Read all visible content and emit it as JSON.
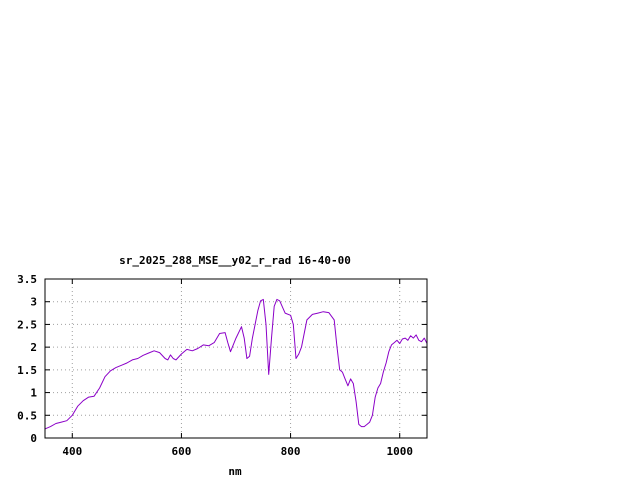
{
  "chart_data": {
    "type": "line",
    "title": "sr_2025_288_MSE__y02_r_rad 16-40-00",
    "xlabel": "nm",
    "ylabel": "",
    "xlim": [
      350,
      1050
    ],
    "ylim": [
      0,
      3.5
    ],
    "grid": true,
    "x_ticks": [
      400,
      600,
      800,
      1000
    ],
    "x_tick_labels": [
      "400",
      "600",
      "800",
      "1000"
    ],
    "y_ticks": [
      0,
      0.5,
      1,
      1.5,
      2,
      2.5,
      3,
      3.5
    ],
    "y_tick_labels": [
      "0",
      "0.5",
      "1",
      "1.5",
      "2",
      "2.5",
      "3",
      "3.5"
    ],
    "line_color": "#8b00c8",
    "series": [
      {
        "x": [
          350,
          360,
          370,
          380,
          390,
          400,
          410,
          420,
          430,
          440,
          450,
          460,
          470,
          480,
          490,
          500,
          510,
          520,
          530,
          540,
          550,
          560,
          570,
          575,
          580,
          585,
          590,
          600,
          610,
          620,
          630,
          640,
          650,
          660,
          670,
          680,
          685,
          690,
          700,
          710,
          715,
          720,
          725,
          730,
          740,
          745,
          750,
          755,
          760,
          765,
          770,
          775,
          780,
          790,
          800,
          805,
          810,
          815,
          820,
          830,
          840,
          850,
          860,
          870,
          880,
          885,
          890,
          895,
          900,
          905,
          910,
          915,
          920,
          925,
          930,
          935,
          940,
          945,
          950,
          955,
          960,
          965,
          970,
          975,
          980,
          985,
          990,
          995,
          1000,
          1005,
          1010,
          1015,
          1020,
          1025,
          1030,
          1035,
          1040,
          1045,
          1050
        ],
        "y": [
          0.2,
          0.25,
          0.32,
          0.35,
          0.38,
          0.5,
          0.7,
          0.82,
          0.9,
          0.92,
          1.1,
          1.35,
          1.48,
          1.55,
          1.6,
          1.65,
          1.72,
          1.75,
          1.82,
          1.87,
          1.92,
          1.88,
          1.75,
          1.72,
          1.83,
          1.75,
          1.72,
          1.85,
          1.95,
          1.92,
          1.97,
          2.05,
          2.03,
          2.1,
          2.3,
          2.32,
          2.1,
          1.9,
          2.2,
          2.45,
          2.2,
          1.75,
          1.8,
          2.2,
          2.8,
          3.02,
          3.05,
          2.5,
          1.4,
          2.2,
          2.9,
          3.05,
          3.02,
          2.75,
          2.7,
          2.5,
          1.75,
          1.85,
          2.0,
          2.6,
          2.72,
          2.75,
          2.78,
          2.76,
          2.6,
          2.0,
          1.5,
          1.45,
          1.3,
          1.15,
          1.3,
          1.2,
          0.8,
          0.3,
          0.25,
          0.25,
          0.3,
          0.35,
          0.5,
          0.9,
          1.1,
          1.2,
          1.45,
          1.65,
          1.9,
          2.05,
          2.1,
          2.15,
          2.08,
          2.18,
          2.2,
          2.15,
          2.25,
          2.2,
          2.27,
          2.15,
          2.12,
          2.2,
          2.08
        ]
      }
    ]
  }
}
